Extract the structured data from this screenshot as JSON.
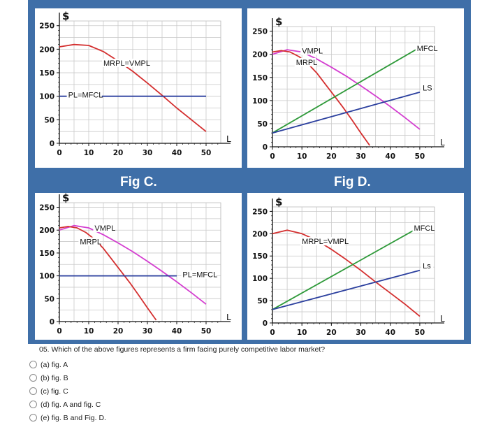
{
  "chart_data": [
    {
      "id": "fig-a",
      "type": "line",
      "title": "",
      "ylabel": "$",
      "xlabel": "L",
      "xlim": [
        0,
        55
      ],
      "ylim": [
        0,
        260
      ],
      "xticks": [
        "0",
        "10",
        "20",
        "30",
        "40",
        "50"
      ],
      "yticks": [
        "0",
        "50",
        "100",
        "150",
        "200",
        "250"
      ],
      "series": [
        {
          "name": "MRPL=VMPL",
          "color": "#d42f2f",
          "x": [
            0,
            5,
            10,
            15,
            20,
            25,
            30,
            35,
            40,
            45,
            50
          ],
          "y": [
            205,
            210,
            208,
            195,
            175,
            153,
            128,
            102,
            75,
            50,
            25
          ]
        },
        {
          "name": "PL=MFCL",
          "color": "#2b3f9e",
          "x": [
            0,
            50
          ],
          "y": [
            100,
            100
          ]
        }
      ],
      "labels": [
        {
          "text": "MRPL=VMPL",
          "x": 15,
          "y": 168
        },
        {
          "text": "PL=MFCL",
          "x": 3,
          "y": 100
        }
      ]
    },
    {
      "id": "fig-b",
      "type": "line",
      "title": "",
      "ylabel": "$",
      "xlabel": "L",
      "xlim": [
        0,
        55
      ],
      "ylim": [
        0,
        260
      ],
      "xticks": [
        "0",
        "10",
        "20",
        "30",
        "40",
        "50"
      ],
      "yticks": [
        "0",
        "50",
        "100",
        "150",
        "200",
        "250"
      ],
      "series": [
        {
          "name": "VMPL",
          "color": "#d43ed0",
          "x": [
            0,
            5,
            10,
            15,
            20,
            25,
            30,
            35,
            40,
            45,
            50
          ],
          "y": [
            200,
            210,
            205,
            190,
            172,
            153,
            132,
            110,
            87,
            63,
            38
          ]
        },
        {
          "name": "MRPL",
          "color": "#d42f2f",
          "x": [
            0,
            3,
            6,
            9,
            12,
            15,
            18,
            21,
            24,
            27,
            30,
            33
          ],
          "y": [
            205,
            208,
            205,
            195,
            180,
            160,
            135,
            110,
            85,
            58,
            30,
            3
          ]
        },
        {
          "name": "MFCL",
          "color": "#2f9a3a",
          "x": [
            0,
            50
          ],
          "y": [
            30,
            215
          ]
        },
        {
          "name": "LS",
          "color": "#2b3f9e",
          "x": [
            0,
            50
          ],
          "y": [
            30,
            118
          ]
        }
      ],
      "labels": [
        {
          "text": "VMPL",
          "x": 10,
          "y": 205
        },
        {
          "text": "MRPL",
          "x": 8,
          "y": 180
        },
        {
          "text": "MFCL",
          "x": 49,
          "y": 210
        },
        {
          "text": "LS",
          "x": 51,
          "y": 125
        }
      ]
    },
    {
      "id": "fig-c",
      "type": "line",
      "title": "Fig C.",
      "ylabel": "$",
      "xlabel": "L",
      "xlim": [
        0,
        55
      ],
      "ylim": [
        0,
        260
      ],
      "xticks": [
        "0",
        "10",
        "20",
        "30",
        "40",
        "50"
      ],
      "yticks": [
        "0",
        "50",
        "100",
        "150",
        "200",
        "250"
      ],
      "series": [
        {
          "name": "VMPL",
          "color": "#d43ed0",
          "x": [
            0,
            5,
            10,
            15,
            20,
            25,
            30,
            35,
            40,
            45,
            50
          ],
          "y": [
            200,
            210,
            205,
            190,
            172,
            153,
            132,
            110,
            87,
            63,
            38
          ]
        },
        {
          "name": "MRPL",
          "color": "#d42f2f",
          "x": [
            0,
            3,
            6,
            9,
            12,
            15,
            18,
            21,
            24,
            27,
            30,
            33
          ],
          "y": [
            205,
            208,
            205,
            195,
            180,
            160,
            135,
            110,
            85,
            58,
            30,
            3
          ]
        },
        {
          "name": "PL=MFCL",
          "color": "#2b3f9e",
          "x": [
            0,
            40
          ],
          "y": [
            100,
            100
          ]
        }
      ],
      "labels": [
        {
          "text": "VMPL",
          "x": 12,
          "y": 202
        },
        {
          "text": "MRPL",
          "x": 7,
          "y": 172
        },
        {
          "text": "PL=MFCL",
          "x": 42,
          "y": 100
        }
      ]
    },
    {
      "id": "fig-d",
      "type": "line",
      "title": "Fig D.",
      "ylabel": "$",
      "xlabel": "L",
      "xlim": [
        0,
        55
      ],
      "ylim": [
        0,
        260
      ],
      "xticks": [
        "0",
        "10",
        "20",
        "30",
        "40",
        "50"
      ],
      "yticks": [
        "0",
        "50",
        "100",
        "150",
        "200",
        "250"
      ],
      "series": [
        {
          "name": "MRPL=VMPL",
          "color": "#d42f2f",
          "x": [
            0,
            5,
            10,
            15,
            20,
            25,
            30,
            35,
            40,
            45,
            50
          ],
          "y": [
            200,
            208,
            200,
            185,
            165,
            142,
            118,
            92,
            67,
            42,
            15
          ]
        },
        {
          "name": "MFCL",
          "color": "#2f9a3a",
          "x": [
            0,
            50
          ],
          "y": [
            30,
            215
          ]
        },
        {
          "name": "Ls",
          "color": "#2b3f9e",
          "x": [
            0,
            50
          ],
          "y": [
            30,
            118
          ]
        }
      ],
      "labels": [
        {
          "text": "MRPL=VMPL",
          "x": 10,
          "y": 180
        },
        {
          "text": "MFCL",
          "x": 48,
          "y": 210
        },
        {
          "text": "Ls",
          "x": 51,
          "y": 125
        }
      ]
    }
  ],
  "question": {
    "text": "05. Which of the above figures represents a firm facing purely competitive labor market?",
    "options": [
      "(a) fig. A",
      "(b) fig. B",
      "(c) fig. C",
      "(d) fig. A and fig. C",
      "(e) fig. B and Fig. D."
    ]
  }
}
